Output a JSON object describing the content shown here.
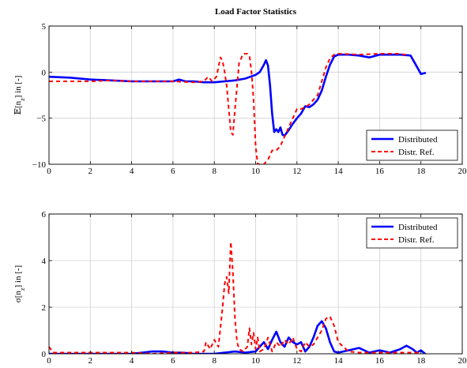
{
  "chart_data": [
    {
      "type": "line",
      "title": "Load Factor Statistics",
      "xlabel": "",
      "ylabel": "E[n_z] in [-]",
      "ylabel_prefix": "𝔼[n",
      "ylabel_sub": "z",
      "ylabel_suffix": "] in [-]",
      "xlim": [
        0,
        20
      ],
      "ylim": [
        -10,
        5
      ],
      "xticks": [
        "0",
        "2",
        "4",
        "6",
        "8",
        "10",
        "12",
        "14",
        "16",
        "18",
        "20"
      ],
      "yticks": [
        "−10",
        "−5",
        "0",
        "5"
      ],
      "grid": true,
      "legend": "bottom-right",
      "series": [
        {
          "name": "Distributed",
          "color": "#0000ff",
          "style": "solid",
          "x": [
            0,
            1,
            2,
            3,
            4,
            5,
            6,
            6.3,
            6.6,
            7,
            7.5,
            8,
            8.5,
            9,
            9.5,
            10,
            10.2,
            10.4,
            10.5,
            10.6,
            10.7,
            10.8,
            10.9,
            11.0,
            11.1,
            11.2,
            11.3,
            11.4,
            11.6,
            11.8,
            12.0,
            12.2,
            12.4,
            12.6,
            12.8,
            13.0,
            13.2,
            13.4,
            13.6,
            13.8,
            14.0,
            14.5,
            15.0,
            15.5,
            16.0,
            16.5,
            17.0,
            17.5,
            17.8,
            18.0,
            18.2
          ],
          "y": [
            -0.5,
            -0.6,
            -0.8,
            -0.9,
            -1.0,
            -1.0,
            -1.0,
            -0.8,
            -1.0,
            -1.0,
            -1.1,
            -1.1,
            -1.0,
            -0.9,
            -0.7,
            -0.3,
            0.0,
            0.8,
            1.3,
            0.7,
            -1.5,
            -4.5,
            -6.5,
            -6.2,
            -6.5,
            -6.0,
            -6.8,
            -6.9,
            -6.3,
            -5.6,
            -5.0,
            -4.5,
            -3.7,
            -3.8,
            -3.5,
            -3.0,
            -2.0,
            -0.5,
            0.8,
            1.7,
            1.9,
            1.9,
            1.8,
            1.6,
            1.9,
            1.9,
            1.9,
            1.8,
            0.6,
            -0.2,
            -0.1
          ]
        },
        {
          "name": "Distr. Ref.",
          "color": "#ff0000",
          "style": "dashed",
          "x": [
            0,
            1,
            2,
            3,
            4,
            5,
            6,
            7,
            7.5,
            7.7,
            7.9,
            8.1,
            8.2,
            8.3,
            8.4,
            8.5,
            8.6,
            8.7,
            8.8,
            8.9,
            9.0,
            9.2,
            9.4,
            9.6,
            9.7,
            9.8,
            9.9,
            10.0,
            10.1,
            10.2,
            10.4,
            10.6,
            10.8,
            11.0,
            11.2,
            11.4,
            11.6,
            11.8,
            12.0,
            12.2,
            12.4,
            12.6,
            12.8,
            13.0,
            13.2,
            13.4,
            13.6,
            13.8,
            14.0,
            15.0,
            16.0,
            17.0,
            17.4
          ],
          "y": [
            -1.0,
            -1.0,
            -1.0,
            -0.9,
            -1.0,
            -1.0,
            -1.0,
            -1.1,
            -1.0,
            -0.5,
            -1.0,
            -0.5,
            0.5,
            1.6,
            1.2,
            0.0,
            -1.5,
            -4.0,
            -6.5,
            -6.8,
            -4.0,
            1.0,
            2.0,
            2.0,
            1.8,
            0.0,
            -3.0,
            -8.0,
            -10.0,
            -10.0,
            -10.0,
            -9.5,
            -8.5,
            -8.5,
            -8.0,
            -7.0,
            -6.0,
            -5.0,
            -4.0,
            -4.0,
            -3.8,
            -3.5,
            -3.0,
            -2.5,
            -1.0,
            0.5,
            1.5,
            1.9,
            2.0,
            1.9,
            2.0,
            2.0,
            1.8
          ]
        }
      ]
    },
    {
      "type": "line",
      "title": "",
      "xlabel": "",
      "ylabel": "σ[n_z] in [-]",
      "ylabel_prefix": "σ[n",
      "ylabel_sub": "z",
      "ylabel_suffix": "] in [-]",
      "xlim": [
        0,
        20
      ],
      "ylim": [
        0,
        6
      ],
      "xticks": [
        "0",
        "2",
        "4",
        "6",
        "8",
        "10",
        "12",
        "14",
        "16",
        "18",
        "20"
      ],
      "yticks": [
        "0",
        "2",
        "4",
        "6"
      ],
      "grid": true,
      "legend": "top-right",
      "series": [
        {
          "name": "Distributed",
          "color": "#0000ff",
          "style": "solid",
          "x": [
            0,
            1,
            2,
            3,
            4,
            4.5,
            5,
            5.5,
            6,
            6.5,
            7,
            8,
            8.5,
            9,
            9.5,
            10,
            10.2,
            10.4,
            10.6,
            10.8,
            11.0,
            11.2,
            11.4,
            11.6,
            11.8,
            12.0,
            12.2,
            12.4,
            12.6,
            12.8,
            13.0,
            13.2,
            13.4,
            13.6,
            13.8,
            14.0,
            14.5,
            15.0,
            15.5,
            16.0,
            16.5,
            17.0,
            17.3,
            17.6,
            17.8,
            18.0,
            18.2
          ],
          "y": [
            0.0,
            0.0,
            0.0,
            0.0,
            0.0,
            0.05,
            0.1,
            0.1,
            0.05,
            0.05,
            0.0,
            0.0,
            0.05,
            0.1,
            0.05,
            0.1,
            0.3,
            0.5,
            0.2,
            0.6,
            0.95,
            0.5,
            0.3,
            0.7,
            0.5,
            0.4,
            0.5,
            0.1,
            0.3,
            0.7,
            1.2,
            1.4,
            1.1,
            0.5,
            0.1,
            0.05,
            0.15,
            0.25,
            0.05,
            0.15,
            0.05,
            0.2,
            0.35,
            0.2,
            0.05,
            0.15,
            0.0
          ]
        },
        {
          "name": "Distr. Ref.",
          "color": "#ff0000",
          "style": "dashed",
          "x": [
            0,
            0.2,
            1,
            2,
            3,
            4,
            5,
            6,
            7,
            7.5,
            7.6,
            7.8,
            8.0,
            8.2,
            8.4,
            8.5,
            8.6,
            8.7,
            8.8,
            8.9,
            9.0,
            9.1,
            9.2,
            9.4,
            9.6,
            9.7,
            9.8,
            9.9,
            10.0,
            10.1,
            10.2,
            10.4,
            10.6,
            10.8,
            11.0,
            11.2,
            11.4,
            11.6,
            11.8,
            12.0,
            12.2,
            12.4,
            12.6,
            12.8,
            13.0,
            13.2,
            13.4,
            13.6,
            13.8,
            14.0,
            14.5,
            15.0,
            16.0,
            17.0,
            18.0
          ],
          "y": [
            0.3,
            0.05,
            0.05,
            0.05,
            0.05,
            0.05,
            0.0,
            0.05,
            0.05,
            0.1,
            0.5,
            0.2,
            0.6,
            0.3,
            2.0,
            3.0,
            3.3,
            2.6,
            4.8,
            3.5,
            1.5,
            0.5,
            0.2,
            0.1,
            0.3,
            1.1,
            0.4,
            0.9,
            0.2,
            0.7,
            0.1,
            0.2,
            0.7,
            0.1,
            0.5,
            0.3,
            0.6,
            0.4,
            0.7,
            0.2,
            0.1,
            0.5,
            0.3,
            0.4,
            0.7,
            1.0,
            1.5,
            1.6,
            1.2,
            0.5,
            0.1,
            0.05,
            0.05,
            0.05,
            0.05
          ]
        }
      ]
    }
  ]
}
